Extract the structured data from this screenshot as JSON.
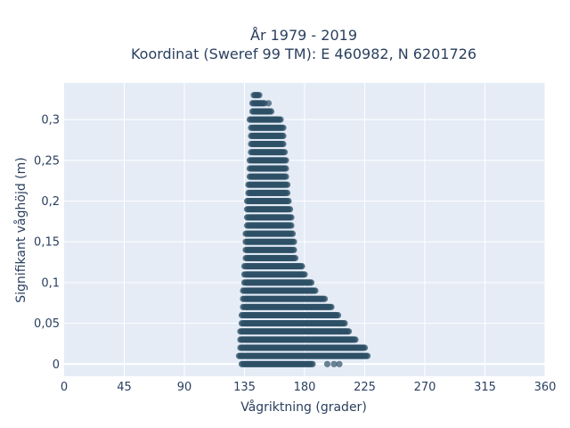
{
  "chart_data": {
    "type": "scatter",
    "title_line1": "År 1979 - 2019",
    "title_line2": "Koordinat (Sweref 99 TM): E 460982, N 6201726",
    "xlabel": "Vågriktning (grader)",
    "ylabel": "Signifikant våghöjd (m)",
    "xlim": [
      0,
      360
    ],
    "ylim": [
      -0.015,
      0.345
    ],
    "x_ticks": [
      0,
      45,
      90,
      135,
      180,
      225,
      270,
      315,
      360
    ],
    "x_tick_labels": [
      "0",
      "45",
      "90",
      "135",
      "180",
      "225",
      "270",
      "315",
      "360"
    ],
    "y_ticks": [
      0,
      0.05,
      0.1,
      0.15,
      0.2,
      0.25,
      0.3
    ],
    "y_tick_labels": [
      "0",
      "0,05",
      "0,1",
      "0,15",
      "0,2",
      "0,25",
      "0,3"
    ],
    "grid": true,
    "marker_color": "#2e5066",
    "background_color": "#e5ecf6",
    "point_rows": [
      {
        "y": 0.33,
        "x_min": 142,
        "x_max": 146
      },
      {
        "y": 0.32,
        "x_min": 141,
        "x_max": 150,
        "extra_x": [
          153
        ]
      },
      {
        "y": 0.31,
        "x_min": 141,
        "x_max": 155
      },
      {
        "y": 0.3,
        "x_min": 139,
        "x_max": 162
      },
      {
        "y": 0.29,
        "x_min": 140,
        "x_max": 164
      },
      {
        "y": 0.28,
        "x_min": 140,
        "x_max": 164
      },
      {
        "y": 0.27,
        "x_min": 140,
        "x_max": 164
      },
      {
        "y": 0.26,
        "x_min": 140,
        "x_max": 165
      },
      {
        "y": 0.25,
        "x_min": 139,
        "x_max": 166
      },
      {
        "y": 0.24,
        "x_min": 139,
        "x_max": 166
      },
      {
        "y": 0.23,
        "x_min": 139,
        "x_max": 166
      },
      {
        "y": 0.22,
        "x_min": 138,
        "x_max": 167
      },
      {
        "y": 0.21,
        "x_min": 138,
        "x_max": 167
      },
      {
        "y": 0.2,
        "x_min": 137,
        "x_max": 168
      },
      {
        "y": 0.19,
        "x_min": 137,
        "x_max": 169
      },
      {
        "y": 0.18,
        "x_min": 137,
        "x_max": 170
      },
      {
        "y": 0.17,
        "x_min": 137,
        "x_max": 170
      },
      {
        "y": 0.16,
        "x_min": 136,
        "x_max": 171
      },
      {
        "y": 0.15,
        "x_min": 136,
        "x_max": 172
      },
      {
        "y": 0.14,
        "x_min": 136,
        "x_max": 172
      },
      {
        "y": 0.13,
        "x_min": 136,
        "x_max": 173
      },
      {
        "y": 0.12,
        "x_min": 135,
        "x_max": 178
      },
      {
        "y": 0.11,
        "x_min": 135,
        "x_max": 180
      },
      {
        "y": 0.1,
        "x_min": 135,
        "x_max": 185
      },
      {
        "y": 0.09,
        "x_min": 134,
        "x_max": 188
      },
      {
        "y": 0.08,
        "x_min": 134,
        "x_max": 195
      },
      {
        "y": 0.07,
        "x_min": 134,
        "x_max": 200
      },
      {
        "y": 0.06,
        "x_min": 133,
        "x_max": 205
      },
      {
        "y": 0.05,
        "x_min": 133,
        "x_max": 210
      },
      {
        "y": 0.04,
        "x_min": 132,
        "x_max": 213
      },
      {
        "y": 0.03,
        "x_min": 132,
        "x_max": 218
      },
      {
        "y": 0.02,
        "x_min": 132,
        "x_max": 225
      },
      {
        "y": 0.01,
        "x_min": 131,
        "x_max": 227
      },
      {
        "y": 0.0,
        "x_min": 133,
        "x_max": 186,
        "extra_x": [
          197,
          202,
          206
        ]
      }
    ]
  }
}
